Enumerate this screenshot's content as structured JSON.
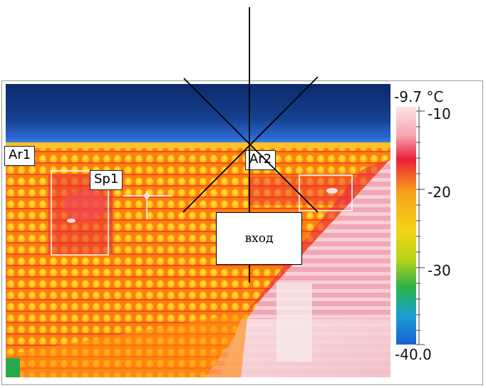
{
  "thermal_image": {
    "labels": {
      "area1": "Ar1",
      "area2": "Ar2",
      "spot1": "Sp1"
    },
    "colors": {
      "sky_dark": "#0c2a6b",
      "sky_light": "#2d6ad6",
      "roof_orange": "#ff7a10",
      "roof_yellow": "#ffd21c",
      "roof_red": "#e8203a",
      "wall_pink": "#f0a4b0",
      "wall_white": "#f6e4e6"
    }
  },
  "scale": {
    "max_label": "-9.7 °C",
    "ticks": [
      "-10",
      "-20",
      "-30"
    ],
    "min_label": "-40.0",
    "gradient_colors": [
      "#fde4e4",
      "#f7a4b0",
      "#e8203a",
      "#f7a21a",
      "#f4d41a",
      "#b9d41a",
      "#2bb24a",
      "#1a9fd4",
      "#1a5fd4"
    ]
  },
  "annotation": {
    "entrance_label": "вход"
  }
}
